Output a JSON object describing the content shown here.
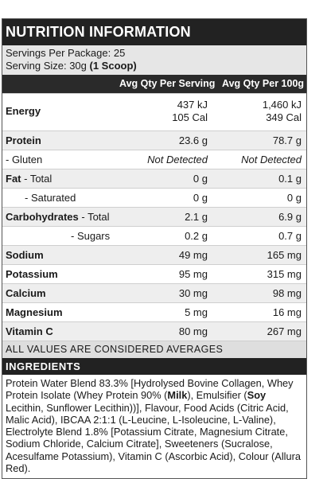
{
  "title": "NUTRITION INFORMATION",
  "servings": {
    "per_package_label": "Servings Per Package: 25",
    "size_prefix": "Serving Size: 30g ",
    "size_bold": "(1 Scoop)"
  },
  "columns": {
    "serving": "Avg Qty Per Serving",
    "per100": "Avg Qty Per 100g"
  },
  "rows": {
    "energy": {
      "label": "Energy",
      "s1": "437 kJ",
      "s2": "105 Cal",
      "p1": "1,460 kJ",
      "p2": "349 Cal"
    },
    "protein": {
      "label": "Protein",
      "s": "23.6 g",
      "p": "78.7 g"
    },
    "gluten": {
      "label": "- Gluten",
      "s": "Not Detected",
      "p": "Not Detected"
    },
    "fat": {
      "label_bold": "Fat",
      "label_rest": " - Total",
      "s": "0 g",
      "p": "0.1 g"
    },
    "saturated": {
      "label": "- Saturated",
      "s": "0 g",
      "p": "0 g"
    },
    "carbs": {
      "label_bold": "Carbohydrates",
      "label_rest": " - Total",
      "s": "2.1 g",
      "p": "6.9 g"
    },
    "sugars": {
      "label": "- Sugars",
      "s": "0.2 g",
      "p": "0.7 g"
    },
    "sodium": {
      "label": "Sodium",
      "s": "49 mg",
      "p": "165 mg"
    },
    "potassium": {
      "label": "Potassium",
      "s": "95 mg",
      "p": "315 mg"
    },
    "calcium": {
      "label": "Calcium",
      "s": "30 mg",
      "p": "98 mg"
    },
    "magnesium": {
      "label": "Magnesium",
      "s": "5 mg",
      "p": "16 mg"
    },
    "vitc": {
      "label": "Vitamin C",
      "s": "80 mg",
      "p": "267 mg"
    }
  },
  "averages": "ALL VALUES ARE CONSIDERED AVERAGES",
  "ingredients": {
    "heading": "INGREDIENTS",
    "t1": "Protein Water Blend 83.3% [Hydrolysed Bovine Collagen, Whey Protein Isolate (Whey Protein 90% (",
    "milk": "Milk",
    "t2": "), Emulsifier (",
    "soy": "Soy",
    "t3": " Lecithin, Sunflower Lecithin))], Flavour, Food Acids (Citric Acid, Malic Acid), IBCAA 2:1:1 (L-Leucine, L-Isoleucine, L-Valine), Electrolyte Blend 1.8% [Potassium Citrate, Magnesium Citrate, Sodium Chloride, Calcium Citrate], Sweeteners (Sucralose, Acesulfame Potassium), Vitamin C (Ascorbic Acid), Colour (Allura Red)."
  }
}
